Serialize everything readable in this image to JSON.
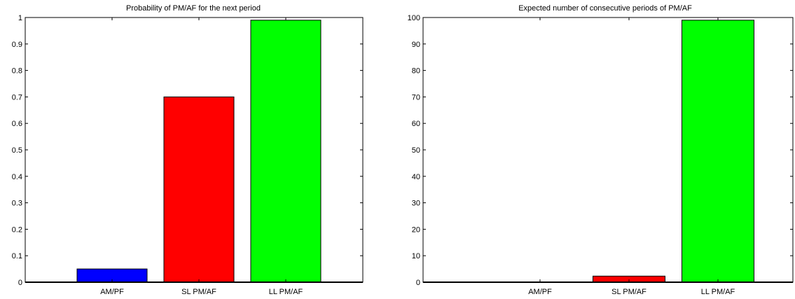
{
  "chart_data": [
    {
      "type": "bar",
      "title": "Probability of PM/AF for the next period",
      "xlabel": "",
      "ylabel": "",
      "categories": [
        "AM/PF",
        "SL PM/AF",
        "LL PM/AF"
      ],
      "values": [
        0.05,
        0.7,
        0.99
      ],
      "colors": [
        "#0000ff",
        "#ff0000",
        "#00ff00"
      ],
      "ylim": [
        0,
        1
      ],
      "yticks": [
        "0",
        "0.1",
        "0.2",
        "0.3",
        "0.4",
        "0.5",
        "0.6",
        "0.7",
        "0.8",
        "0.9",
        "1"
      ],
      "grid": false,
      "legend": "none"
    },
    {
      "type": "bar",
      "title": "Expected number of consecutive periods of PM/AF",
      "xlabel": "",
      "ylabel": "",
      "categories": [
        "AM/PF",
        "SL PM/AF",
        "LL PM/AF"
      ],
      "values": [
        0.05,
        2.3,
        99
      ],
      "colors": [
        "#0000ff",
        "#ff0000",
        "#00ff00"
      ],
      "ylim": [
        0,
        100
      ],
      "yticks": [
        "0",
        "10",
        "20",
        "30",
        "40",
        "50",
        "60",
        "70",
        "80",
        "90",
        "100"
      ],
      "grid": false,
      "legend": "none"
    }
  ]
}
